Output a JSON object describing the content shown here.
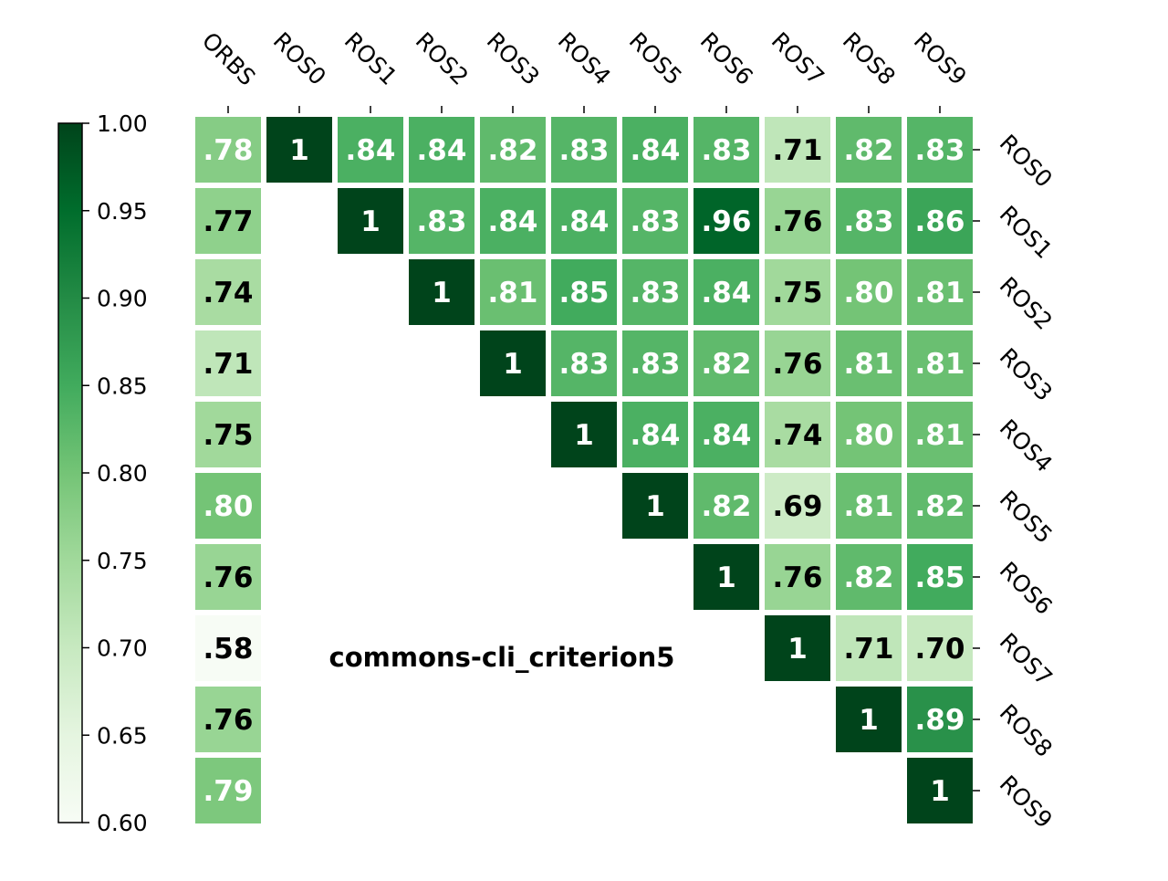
{
  "chart_data": {
    "type": "heatmap",
    "title": "commons-cli_criterion5",
    "columns": [
      "ORBS",
      "ROS0",
      "ROS1",
      "ROS2",
      "ROS3",
      "ROS4",
      "ROS5",
      "ROS6",
      "ROS7",
      "ROS8",
      "ROS9"
    ],
    "rows": [
      "ROS0",
      "ROS1",
      "ROS2",
      "ROS3",
      "ROS4",
      "ROS5",
      "ROS6",
      "ROS7",
      "ROS8",
      "ROS9"
    ],
    "values": [
      [
        0.78,
        1,
        0.84,
        0.84,
        0.82,
        0.83,
        0.84,
        0.83,
        0.71,
        0.82,
        0.83
      ],
      [
        0.77,
        null,
        1,
        0.83,
        0.84,
        0.84,
        0.83,
        0.96,
        0.76,
        0.83,
        0.86
      ],
      [
        0.74,
        null,
        null,
        1,
        0.81,
        0.85,
        0.83,
        0.84,
        0.75,
        0.8,
        0.81
      ],
      [
        0.71,
        null,
        null,
        null,
        1,
        0.83,
        0.83,
        0.82,
        0.76,
        0.81,
        0.81
      ],
      [
        0.75,
        null,
        null,
        null,
        null,
        1,
        0.84,
        0.84,
        0.74,
        0.8,
        0.81
      ],
      [
        0.8,
        null,
        null,
        null,
        null,
        null,
        1,
        0.82,
        0.69,
        0.81,
        0.82
      ],
      [
        0.76,
        null,
        null,
        null,
        null,
        null,
        null,
        1,
        0.76,
        0.82,
        0.85
      ],
      [
        0.58,
        null,
        null,
        null,
        null,
        null,
        null,
        null,
        1,
        0.71,
        0.7
      ],
      [
        0.76,
        null,
        null,
        null,
        null,
        null,
        null,
        null,
        null,
        1,
        0.89
      ],
      [
        0.79,
        null,
        null,
        null,
        null,
        null,
        null,
        null,
        null,
        null,
        1
      ]
    ],
    "labels": [
      [
        ".78",
        "1",
        ".84",
        ".84",
        ".82",
        ".83",
        ".84",
        ".83",
        ".71",
        ".82",
        ".83"
      ],
      [
        ".77",
        "",
        "1",
        ".83",
        ".84",
        ".84",
        ".83",
        ".96",
        ".76",
        ".83",
        ".86"
      ],
      [
        ".74",
        "",
        "",
        "1",
        ".81",
        ".85",
        ".83",
        ".84",
        ".75",
        ".80",
        ".81"
      ],
      [
        ".71",
        "",
        "",
        "",
        "1",
        ".83",
        ".83",
        ".82",
        ".76",
        ".81",
        ".81"
      ],
      [
        ".75",
        "",
        "",
        "",
        "",
        "1",
        ".84",
        ".84",
        ".74",
        ".80",
        ".81"
      ],
      [
        ".80",
        "",
        "",
        "",
        "",
        "",
        "1",
        ".82",
        ".69",
        ".81",
        ".82"
      ],
      [
        ".76",
        "",
        "",
        "",
        "",
        "",
        "",
        "1",
        ".76",
        ".82",
        ".85"
      ],
      [
        ".58",
        "",
        "",
        "",
        "",
        "",
        "",
        "",
        "1",
        ".71",
        ".70"
      ],
      [
        ".76",
        "",
        "",
        "",
        "",
        "",
        "",
        "",
        "",
        "1",
        ".89"
      ],
      [
        ".79",
        "",
        "",
        "",
        "",
        "",
        "",
        "",
        "",
        "",
        "1"
      ]
    ],
    "colorbar": {
      "range": [
        0.6,
        1.0
      ],
      "ticks": [
        "0.60",
        "0.65",
        "0.70",
        "0.75",
        "0.80",
        "0.85",
        "0.90",
        "0.95",
        "1.00"
      ],
      "placement": "left",
      "colormap": "Greens",
      "color_low": "#f7fcf5",
      "color_high": "#00441b"
    },
    "x_tick_position": "top",
    "y_tick_position": "right",
    "grid": false
  }
}
